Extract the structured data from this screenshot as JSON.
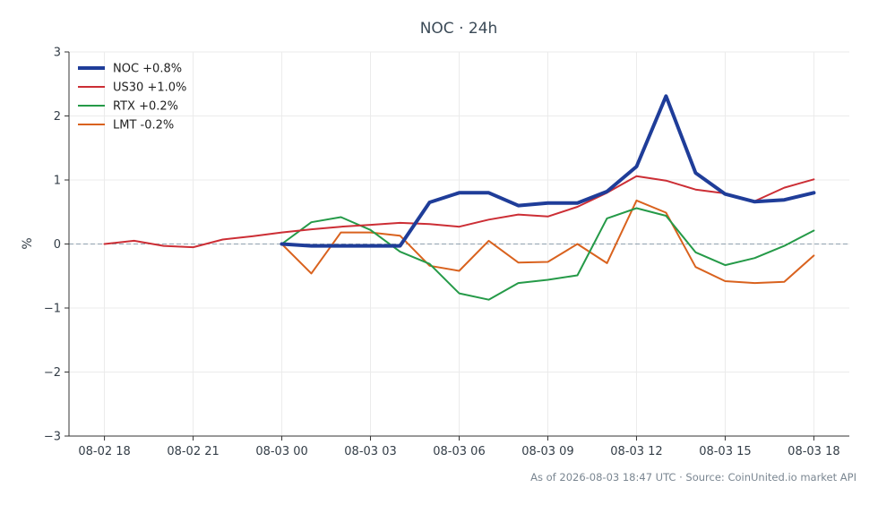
{
  "chart_data": {
    "type": "line",
    "title": "NOC · 24h",
    "xlabel": "",
    "ylabel": "%",
    "ylim": [
      -3,
      3
    ],
    "yticks": [
      3,
      2,
      1,
      0,
      -1,
      -2,
      -3
    ],
    "ytick_labels": [
      "3",
      "2",
      "1",
      "0",
      "−1",
      "−2",
      "−3"
    ],
    "xticks": [
      {
        "t": 0,
        "label": "08-02 18"
      },
      {
        "t": 3,
        "label": "08-02 21"
      },
      {
        "t": 6,
        "label": "08-03 00"
      },
      {
        "t": 9,
        "label": "08-03 03"
      },
      {
        "t": 12,
        "label": "08-03 06"
      },
      {
        "t": 15,
        "label": "08-03 09"
      },
      {
        "t": 18,
        "label": "08-03 12"
      },
      {
        "t": 21,
        "label": "08-03 15"
      },
      {
        "t": 24,
        "label": "08-03 18"
      }
    ],
    "xlim": [
      -1.2,
      25.2
    ],
    "grid": true,
    "zero_line": true,
    "legend_position": "top-left",
    "series": [
      {
        "name": "NOC +0.8%",
        "color": "#1f3d99",
        "width": 4,
        "x": [
          6,
          7,
          8,
          9,
          10,
          11,
          12,
          13,
          14,
          15,
          16,
          17,
          18,
          19,
          20,
          21,
          22,
          23,
          24
        ],
        "values": [
          0.0,
          -0.03,
          -0.03,
          -0.03,
          -0.03,
          0.65,
          0.8,
          0.8,
          0.6,
          0.64,
          0.64,
          0.82,
          1.21,
          2.31,
          1.11,
          0.78,
          0.66,
          0.69,
          0.8
        ]
      },
      {
        "name": "US30 +1.0%",
        "color": "#cc2e35",
        "width": 2,
        "x": [
          0,
          1,
          2,
          3,
          4,
          5,
          6,
          7,
          8,
          9,
          10,
          11,
          12,
          13,
          14,
          15,
          16,
          17,
          18,
          19,
          20,
          21,
          22,
          23,
          24
        ],
        "values": [
          0.0,
          0.05,
          -0.03,
          -0.05,
          0.07,
          0.12,
          0.18,
          0.23,
          0.27,
          0.3,
          0.33,
          0.31,
          0.27,
          0.38,
          0.46,
          0.43,
          0.58,
          0.8,
          1.06,
          0.99,
          0.85,
          0.79,
          0.67,
          0.88,
          1.01
        ]
      },
      {
        "name": "RTX +0.2%",
        "color": "#259a48",
        "width": 2,
        "x": [
          6,
          7,
          8,
          9,
          10,
          11,
          12,
          13,
          14,
          15,
          16,
          17,
          18,
          19,
          20,
          21,
          22,
          23,
          24
        ],
        "values": [
          0.0,
          0.34,
          0.42,
          0.22,
          -0.12,
          -0.31,
          -0.77,
          -0.87,
          -0.61,
          -0.56,
          -0.49,
          0.4,
          0.56,
          0.44,
          -0.13,
          -0.33,
          -0.22,
          -0.03,
          0.21
        ]
      },
      {
        "name": "LMT -0.2%",
        "color": "#d9621e",
        "width": 2,
        "x": [
          6,
          7,
          8,
          9,
          10,
          11,
          12,
          13,
          14,
          15,
          16,
          17,
          18,
          19,
          20,
          21,
          22,
          23,
          24
        ],
        "values": [
          0.0,
          -0.46,
          0.18,
          0.18,
          0.13,
          -0.34,
          -0.42,
          0.05,
          -0.29,
          -0.28,
          0.0,
          -0.3,
          0.68,
          0.49,
          -0.36,
          -0.58,
          -0.61,
          -0.59,
          -0.18
        ]
      }
    ]
  },
  "footer": "As of 2026-08-03 18:47 UTC · Source: CoinUnited.io market API"
}
